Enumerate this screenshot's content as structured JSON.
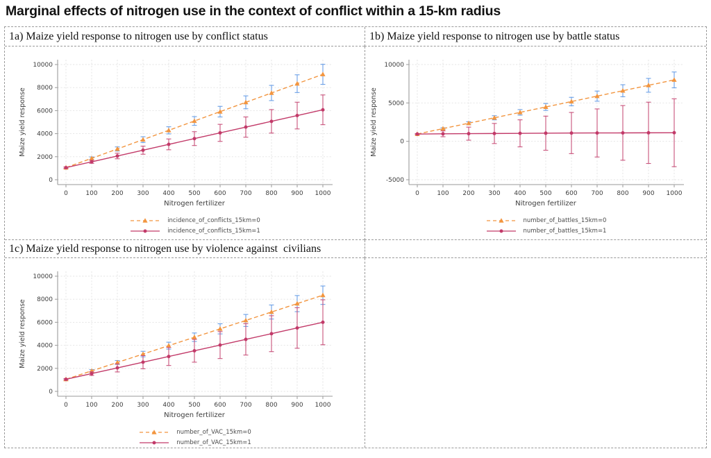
{
  "page": {
    "title": "Marginal effects of nitrogen use in the context of conflict within a 15-km radius"
  },
  "colors": {
    "series0_line": "#F2953F",
    "series0_error": "#6A9FE6",
    "series1_line": "#C23A69",
    "series1_error": "#C8527B",
    "grid": "#E4E4E4",
    "axis": "#9a9a9a",
    "tick_text": "#3c3c3c",
    "border_dash": "#9a9a9a"
  },
  "chart_data": [
    {
      "type": "line",
      "panel_label": "1a) Maize yield response to nitrogen use by conflict status",
      "xlabel": "Nitrogen fertilizer",
      "ylabel": "Maize yield response",
      "xlim": [
        0,
        1000
      ],
      "ylim": [
        0,
        10000
      ],
      "xticks": [
        0,
        100,
        200,
        300,
        400,
        500,
        600,
        700,
        800,
        900,
        1000
      ],
      "yticks": [
        0,
        2000,
        4000,
        6000,
        8000,
        10000
      ],
      "grid": true,
      "legend_position": "bottom",
      "x": [
        0,
        100,
        200,
        300,
        400,
        500,
        600,
        700,
        800,
        900,
        1000
      ],
      "series": [
        {
          "name": "incidence_of_conflicts_15km=0",
          "style": "dashed",
          "marker": "triangle",
          "values": [
            1050,
            1860,
            2670,
            3480,
            4290,
            5100,
            5910,
            6720,
            7530,
            8340,
            9150
          ],
          "ci_half": [
            60,
            120,
            180,
            250,
            310,
            380,
            460,
            560,
            660,
            770,
            870
          ]
        },
        {
          "name": "incidence_of_conflicts_15km=1",
          "style": "solid",
          "marker": "circle",
          "values": [
            1050,
            1555,
            2060,
            2565,
            3070,
            3570,
            4070,
            4570,
            5070,
            5570,
            6070
          ],
          "ci_half": [
            60,
            130,
            240,
            350,
            470,
            600,
            740,
            880,
            1020,
            1160,
            1290
          ]
        }
      ]
    },
    {
      "type": "line",
      "panel_label": "1b) Maize yield response to nitrogen use by battle status",
      "xlabel": "Nitrogen fertilizer",
      "ylabel": "Maize yield response",
      "xlim": [
        0,
        1000
      ],
      "ylim": [
        -5000,
        10000
      ],
      "xticks": [
        0,
        100,
        200,
        300,
        400,
        500,
        600,
        700,
        800,
        900,
        1000
      ],
      "yticks": [
        -5000,
        0,
        5000,
        10000
      ],
      "grid": true,
      "legend_position": "bottom",
      "x": [
        0,
        100,
        200,
        300,
        400,
        500,
        600,
        700,
        800,
        900,
        1000
      ],
      "series": [
        {
          "name": "number_of_battles_15km=0",
          "style": "dashed",
          "marker": "triangle",
          "values": [
            950,
            1655,
            2360,
            3065,
            3770,
            4475,
            5180,
            5885,
            6590,
            7295,
            8000
          ],
          "ci_half": [
            50,
            110,
            190,
            270,
            360,
            450,
            550,
            660,
            780,
            900,
            1030
          ]
        },
        {
          "name": "number_of_battles_15km=1",
          "style": "solid",
          "marker": "circle",
          "values": [
            950,
            980,
            1000,
            1020,
            1040,
            1060,
            1080,
            1090,
            1100,
            1110,
            1120
          ],
          "ci_half": [
            50,
            380,
            850,
            1310,
            1760,
            2220,
            2680,
            3130,
            3560,
            3990,
            4420
          ]
        }
      ]
    },
    {
      "type": "line",
      "panel_label": "1c) Maize yield response to nitrogen use by violence against  civilians",
      "xlabel": "Nitrogen fertilizer",
      "ylabel": "Maize yield response",
      "xlim": [
        0,
        1000
      ],
      "ylim": [
        0,
        10000
      ],
      "xticks": [
        0,
        100,
        200,
        300,
        400,
        500,
        600,
        700,
        800,
        900,
        1000
      ],
      "yticks": [
        0,
        2000,
        4000,
        6000,
        8000,
        10000
      ],
      "grid": true,
      "legend_position": "bottom",
      "x": [
        0,
        100,
        200,
        300,
        400,
        500,
        600,
        700,
        800,
        900,
        1000
      ],
      "series": [
        {
          "name": "number_of_VAC_15km=0",
          "style": "dashed",
          "marker": "triangle",
          "values": [
            1050,
            1780,
            2510,
            3240,
            3970,
            4700,
            5430,
            6160,
            6890,
            7620,
            8350
          ],
          "ci_half": [
            60,
            110,
            170,
            240,
            300,
            370,
            440,
            520,
            610,
            700,
            800
          ]
        },
        {
          "name": "number_of_VAC_15km=1",
          "style": "solid",
          "marker": "circle",
          "values": [
            1050,
            1545,
            2040,
            2535,
            3030,
            3525,
            4020,
            4515,
            5010,
            5505,
            6000
          ],
          "ci_half": [
            60,
            160,
            350,
            570,
            780,
            990,
            1170,
            1360,
            1560,
            1760,
            1950
          ]
        }
      ]
    }
  ]
}
